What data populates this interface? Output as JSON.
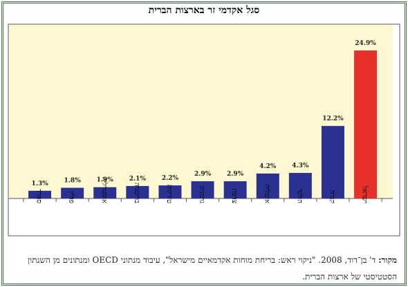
{
  "chart_data": {
    "type": "bar",
    "title": "סגל אקדמי זר בארצות הברית",
    "categories": [
      "ספרד",
      "פולין",
      "אוסטרליה",
      "בריטניה",
      "טורקיה",
      "גרמניה",
      "צרפת",
      "איטליה",
      "הולנד",
      "קנדה",
      "ישראל"
    ],
    "values": [
      1.3,
      1.8,
      1.9,
      2.1,
      2.2,
      2.9,
      2.9,
      4.2,
      4.3,
      12.2,
      24.9
    ],
    "value_labels": [
      "1.3%",
      "1.8%",
      "1.9%",
      "2.1%",
      "2.2%",
      "2.9%",
      "2.9%",
      "4.2%",
      "4.3%",
      "12.2%",
      "24.9%"
    ],
    "colors": [
      "#2b3190",
      "#2b3190",
      "#2b3190",
      "#2b3190",
      "#2b3190",
      "#2b3190",
      "#2b3190",
      "#2b3190",
      "#2b3190",
      "#2b3190",
      "#e8302a"
    ],
    "source_label": "מקור:",
    "source_text": "ד' בן־דוד, 2008. \"ניקוי ראש: בריחת מוחות אקדמאיים מישראל\", עיבוד מנתוני OECD ומנתונים מן השנתון הסטטיסטי של ארצות הברית."
  }
}
